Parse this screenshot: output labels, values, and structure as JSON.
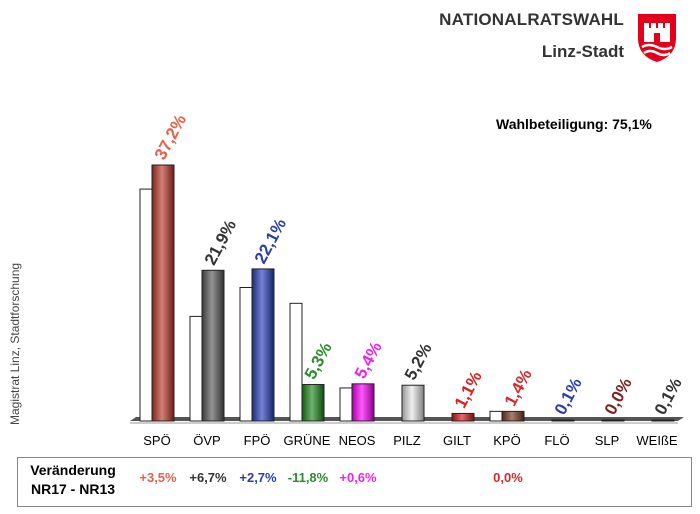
{
  "header": {
    "title": "NATIONALRATSWAHL",
    "subtitle": "Linz-Stadt",
    "coat_of_arms_icon": "linz-coat-of-arms-icon",
    "brand_color": "#e2001a"
  },
  "turnout": "Wahlbeteiligung:  75,1%",
  "source_label": "Magistrat Linz, Stadtforschung",
  "chart_data": {
    "type": "bar",
    "categories": [
      "SPÖ",
      "ÖVP",
      "FPÖ",
      "GRÜNE",
      "NEOS",
      "PILZ",
      "GILT",
      "KPÖ",
      "FLÖ",
      "SLP",
      "WEIßE"
    ],
    "value_labels": [
      "37,2%",
      "21,9%",
      "22,1%",
      "5,3%",
      "5,4%",
      "5,2%",
      "1,1%",
      "1,4%",
      "0,1%",
      "0,0%",
      "0,1%"
    ],
    "series": [
      {
        "values": [
          37.2,
          21.9,
          22.1,
          5.3,
          5.4,
          5.2,
          1.1,
          1.4,
          0.1,
          0.0,
          0.1
        ]
      },
      {
        "values": [
          33.7,
          15.2,
          19.4,
          17.1,
          4.8,
          0,
          0,
          1.4,
          0,
          0,
          0
        ]
      }
    ],
    "colors": [
      "#c0392b",
      "#5a5a5a",
      "#2a3fbf",
      "#1e8a1e",
      "#ff00ff",
      "#e6e6e6",
      "#d91a1a",
      "#7b3a24",
      "#1f2f8a",
      "#6b2020",
      "#333333"
    ],
    "label_colors": [
      "#e8604a",
      "#333333",
      "#2a3fa8",
      "#2e8b2e",
      "#ee22ee",
      "#333333",
      "#e21b1b",
      "#d42a2a",
      "#2a3fa8",
      "#7a2323",
      "#333333"
    ],
    "ylim": [
      0,
      45
    ],
    "grid": false,
    "legend": "none"
  },
  "changes": {
    "label": "Veränderung NR17 - NR13",
    "values": [
      "+3,5%",
      "+6,7%",
      "+2,7%",
      "-11,8%",
      "+0,6%",
      "",
      "",
      "0,0%",
      "",
      "",
      ""
    ],
    "colors": [
      "#e8604a",
      "#333333",
      "#2a3fa8",
      "#2e8b2e",
      "#ee22ee",
      "#333333",
      "#e21b1b",
      "#d42a2a",
      "#2a3fa8",
      "#7a2323",
      "#333333"
    ]
  }
}
